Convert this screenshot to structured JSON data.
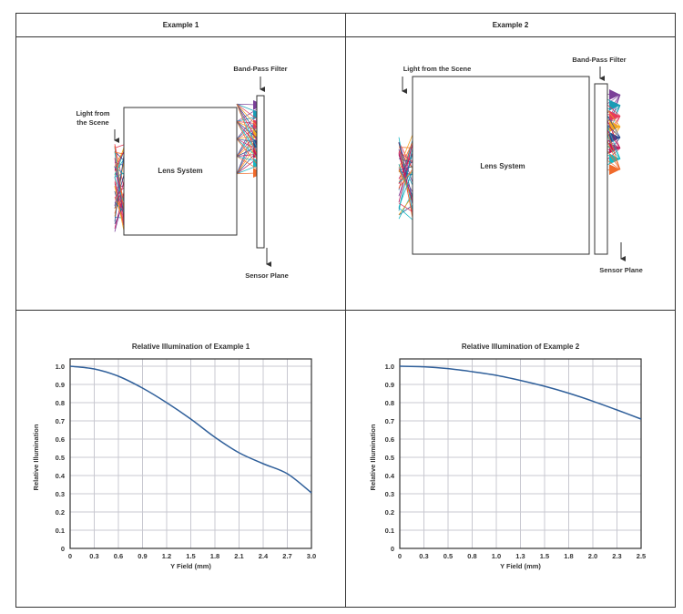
{
  "headers": [
    "Example 1",
    "Example 2"
  ],
  "diagram1": {
    "light": [
      "Light from",
      "the Scene"
    ],
    "lens": "Lens System",
    "filter": "Band-Pass Filter",
    "sensor": "Sensor Plane"
  },
  "diagram2": {
    "light": "Light from the Scene",
    "lens": "Lens System",
    "filter": "Band-Pass Filter",
    "sensor": "Sensor Plane"
  },
  "colors": {
    "curve": "#2f5f9a",
    "grid": "#c8c8d0",
    "rays": [
      "#7b3f98",
      "#1a9bb5",
      "#e63b5a",
      "#f2a623",
      "#2e4a8f",
      "#c2185b",
      "#17b8c4",
      "#f06a2b"
    ]
  },
  "chart_data": [
    {
      "type": "line",
      "title": "Relative Illumination of Example 1",
      "xlabel": "Y Field (mm)",
      "ylabel": "Relative Illumination",
      "xticks": [
        "0",
        "0.3",
        "0.6",
        "0.9",
        "1.2",
        "1.5",
        "1.8",
        "2.1",
        "2.4",
        "2.7",
        "3.0"
      ],
      "yticks": [
        "0",
        "0.1",
        "0.2",
        "0.3",
        "0.4",
        "0.5",
        "0.6",
        "0.7",
        "0.8",
        "0.9",
        "1.0"
      ],
      "xlim": [
        0,
        3.0
      ],
      "ylim": [
        0,
        1.0
      ],
      "grid": true,
      "x": [
        0,
        0.3,
        0.6,
        0.9,
        1.2,
        1.5,
        1.8,
        2.1,
        2.4,
        2.7,
        3.0
      ],
      "y": [
        1.0,
        0.985,
        0.945,
        0.88,
        0.8,
        0.71,
        0.61,
        0.525,
        0.465,
        0.41,
        0.305
      ]
    },
    {
      "type": "line",
      "title": "Relative Illumination of Example 2",
      "xlabel": "Y Field (mm)",
      "ylabel": "Relative Illumination",
      "xticks": [
        "0",
        "0.3",
        "0.5",
        "0.8",
        "1.0",
        "1.3",
        "1.5",
        "1.8",
        "2.0",
        "2.3",
        "2.5"
      ],
      "yticks": [
        "0",
        "0.1",
        "0.2",
        "0.3",
        "0.4",
        "0.5",
        "0.6",
        "0.7",
        "0.8",
        "0.9",
        "1.0"
      ],
      "xlim": [
        0,
        2.5
      ],
      "ylim": [
        0,
        1.0
      ],
      "grid": true,
      "x": [
        0,
        0.25,
        0.5,
        0.75,
        1.0,
        1.25,
        1.5,
        1.75,
        2.0,
        2.25,
        2.5
      ],
      "y": [
        1.0,
        0.997,
        0.987,
        0.97,
        0.95,
        0.922,
        0.89,
        0.852,
        0.808,
        0.76,
        0.71
      ]
    }
  ]
}
